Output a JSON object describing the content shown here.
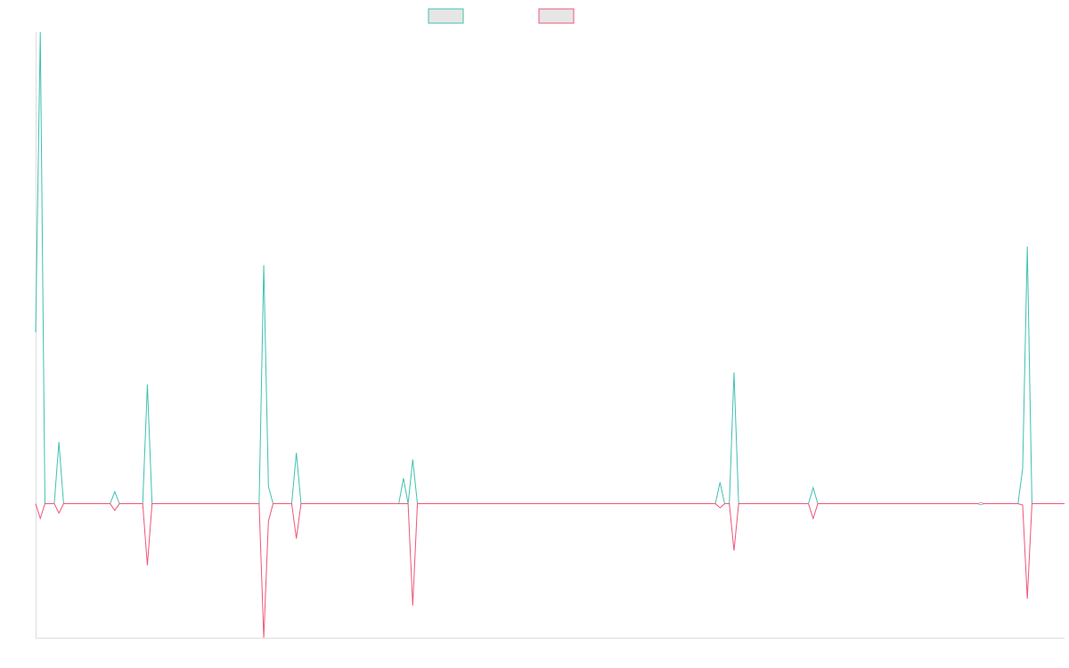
{
  "colors": {
    "teal": "#3fc1b0",
    "pink": "#f0557a",
    "swatch_fill": "#e6e6e6",
    "axis": "#dddddd",
    "background": "#ffffff"
  },
  "chart_data": {
    "type": "line",
    "legend": {
      "placement": "top-center",
      "labels": [
        "",
        ""
      ]
    },
    "grid": false,
    "ylim": [
      -100,
      352
    ],
    "x_count": 221,
    "series": [
      {
        "color": "#3fc1b0",
        "points": [
          [
            0,
            128
          ],
          [
            1,
            352
          ],
          [
            2,
            0
          ],
          [
            4,
            0
          ],
          [
            5,
            46
          ],
          [
            6,
            0
          ],
          [
            16,
            0
          ],
          [
            17,
            9
          ],
          [
            18,
            0
          ],
          [
            23,
            0
          ],
          [
            24,
            89
          ],
          [
            25,
            0
          ],
          [
            48,
            0
          ],
          [
            49,
            178
          ],
          [
            50,
            13
          ],
          [
            51,
            0
          ],
          [
            55,
            0
          ],
          [
            56,
            38
          ],
          [
            57,
            0
          ],
          [
            78,
            0
          ],
          [
            79,
            19
          ],
          [
            80,
            0
          ],
          [
            81,
            33
          ],
          [
            82,
            0
          ],
          [
            146,
            0
          ],
          [
            147,
            16
          ],
          [
            148,
            0
          ],
          [
            149,
            0
          ],
          [
            150,
            98
          ],
          [
            151,
            0
          ],
          [
            166,
            0
          ],
          [
            167,
            12
          ],
          [
            168,
            0
          ],
          [
            211,
            0
          ],
          [
            212,
            26
          ],
          [
            213,
            192
          ],
          [
            214,
            0
          ],
          [
            221,
            0
          ]
        ]
      },
      {
        "color": "#f0557a",
        "points": [
          [
            0,
            0
          ],
          [
            1,
            -11
          ],
          [
            2,
            0
          ],
          [
            4,
            0
          ],
          [
            5,
            -7
          ],
          [
            6,
            0
          ],
          [
            16,
            0
          ],
          [
            17,
            -5
          ],
          [
            18,
            0
          ],
          [
            23,
            0
          ],
          [
            24,
            -46
          ],
          [
            25,
            0
          ],
          [
            48,
            0
          ],
          [
            49,
            -100
          ],
          [
            50,
            -13
          ],
          [
            51,
            0
          ],
          [
            55,
            0
          ],
          [
            56,
            -26
          ],
          [
            57,
            0
          ],
          [
            80,
            0
          ],
          [
            81,
            -76
          ],
          [
            82,
            0
          ],
          [
            146,
            0
          ],
          [
            147,
            -3
          ],
          [
            148,
            0
          ],
          [
            149,
            0
          ],
          [
            150,
            -35
          ],
          [
            151,
            0
          ],
          [
            166,
            0
          ],
          [
            167,
            -11
          ],
          [
            168,
            0
          ],
          [
            211,
            0
          ],
          [
            212,
            -1
          ],
          [
            213,
            -71
          ],
          [
            214,
            0
          ],
          [
            221,
            0
          ]
        ]
      }
    ],
    "small_markers": [
      {
        "x": 203,
        "y": 0
      }
    ]
  }
}
